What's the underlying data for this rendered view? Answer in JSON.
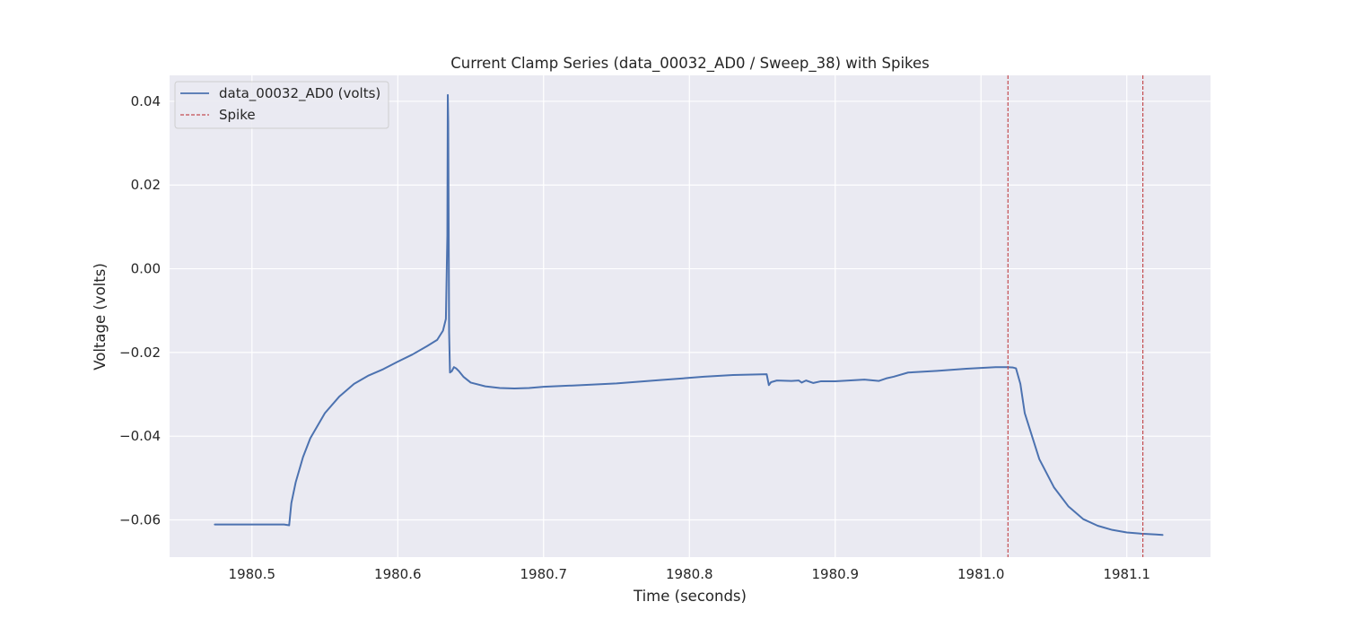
{
  "chart_data": {
    "type": "line",
    "title": "Current Clamp Series (data_00032_AD0 / Sweep_38) with Spikes",
    "xlabel": "Time (seconds)",
    "ylabel": "Voltage (volts)",
    "xlim": [
      1980.4435,
      1981.1574
    ],
    "ylim": [
      -0.0689,
      0.0462
    ],
    "xticks": [
      1980.5,
      1980.6,
      1980.7,
      1980.8,
      1980.9,
      1981.0,
      1981.1
    ],
    "xtick_labels": [
      "1980.5",
      "1980.6",
      "1980.7",
      "1980.8",
      "1980.9",
      "1981.0",
      "1981.1"
    ],
    "yticks": [
      0.04,
      0.02,
      0.0,
      -0.02,
      -0.04,
      -0.06
    ],
    "ytick_labels": [
      "0.04",
      "0.02",
      "0.00",
      "−0.02",
      "−0.04",
      "−0.06"
    ],
    "grid": true,
    "legend_position": "top-left",
    "background_color": "#eaeaf2",
    "grid_color": "#ffffff",
    "series": [
      {
        "name": "data_00032_AD0 (volts)",
        "color": "#4c72b0",
        "style": "solid",
        "x": [
          1980.4745,
          1980.49,
          1980.51,
          1980.522,
          1980.5255,
          1980.527,
          1980.53,
          1980.535,
          1980.54,
          1980.55,
          1980.56,
          1980.57,
          1980.58,
          1980.59,
          1980.6,
          1980.61,
          1980.62,
          1980.627,
          1980.631,
          1980.633,
          1980.634,
          1980.6343,
          1980.6346,
          1980.6352,
          1980.6358,
          1980.637,
          1980.6385,
          1980.64,
          1980.642,
          1980.645,
          1980.65,
          1980.66,
          1980.67,
          1980.68,
          1980.69,
          1980.7,
          1980.72,
          1980.75,
          1980.78,
          1980.81,
          1980.83,
          1980.853,
          1980.8545,
          1980.856,
          1980.86,
          1980.87,
          1980.875,
          1980.877,
          1980.88,
          1980.885,
          1980.89,
          1980.9,
          1980.92,
          1980.93,
          1980.935,
          1980.94,
          1980.95,
          1980.97,
          1980.99,
          1981.0,
          1981.01,
          1981.018,
          1981.022,
          1981.024,
          1981.027,
          1981.03,
          1981.04,
          1981.05,
          1981.06,
          1981.07,
          1981.08,
          1981.09,
          1981.1,
          1981.11,
          1981.12,
          1981.1245
        ],
        "y": [
          -0.0611,
          -0.0611,
          -0.0611,
          -0.0611,
          -0.0613,
          -0.056,
          -0.051,
          -0.045,
          -0.0405,
          -0.0345,
          -0.0305,
          -0.0275,
          -0.0255,
          -0.024,
          -0.0222,
          -0.0205,
          -0.0185,
          -0.017,
          -0.0148,
          -0.012,
          0.008,
          0.0415,
          0.035,
          -0.015,
          -0.0248,
          -0.0245,
          -0.0235,
          -0.0238,
          -0.0245,
          -0.0258,
          -0.0272,
          -0.0281,
          -0.0285,
          -0.0286,
          -0.0285,
          -0.0282,
          -0.0279,
          -0.0274,
          -0.0266,
          -0.0258,
          -0.0254,
          -0.0252,
          -0.0278,
          -0.0271,
          -0.0267,
          -0.0268,
          -0.0267,
          -0.0272,
          -0.0267,
          -0.0273,
          -0.0269,
          -0.0269,
          -0.0265,
          -0.0268,
          -0.0262,
          -0.0258,
          -0.0248,
          -0.0244,
          -0.0239,
          -0.0237,
          -0.0235,
          -0.0235,
          -0.0236,
          -0.0238,
          -0.0275,
          -0.0345,
          -0.0455,
          -0.0522,
          -0.0568,
          -0.0598,
          -0.0614,
          -0.0624,
          -0.063,
          -0.0633,
          -0.0635,
          -0.0636
        ]
      }
    ],
    "spikes": {
      "name": "Spike",
      "color": "#c44e52",
      "style": "dashed",
      "x": [
        1981.0185,
        1981.111
      ]
    }
  }
}
